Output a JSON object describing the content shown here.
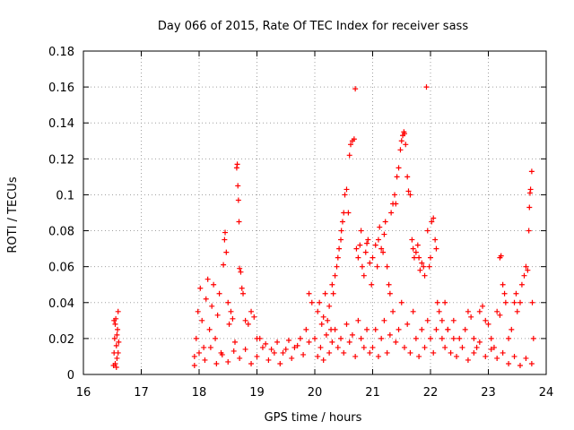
{
  "chart_data": {
    "type": "scatter",
    "title": "Day 066 of 2015, Rate Of TEC Index for receiver sass",
    "xlabel": "GPS time / hours",
    "ylabel": "ROTI / TECUs",
    "xlim": [
      16,
      24
    ],
    "ylim": [
      0,
      0.18
    ],
    "xticks": [
      "16",
      "17",
      "18",
      "19",
      "20",
      "21",
      "22",
      "23",
      "24"
    ],
    "yticks": [
      "0",
      "0.02",
      "0.04",
      "0.06",
      "0.08",
      "0.1",
      "0.12",
      "0.14",
      "0.16",
      "0.18"
    ],
    "grid": true,
    "marker": "+",
    "color": "#ff0000",
    "series": [
      {
        "name": "ROTI",
        "points": [
          [
            16.52,
            0.005
          ],
          [
            16.53,
            0.012
          ],
          [
            16.54,
            0.02
          ],
          [
            16.55,
            0.028
          ],
          [
            16.56,
            0.031
          ],
          [
            16.57,
            0.016
          ],
          [
            16.58,
            0.009
          ],
          [
            16.59,
            0.025
          ],
          [
            16.6,
            0.035
          ],
          [
            16.61,
            0.018
          ],
          [
            16.55,
            0.006
          ],
          [
            16.58,
            0.022
          ],
          [
            16.53,
            0.03
          ],
          [
            16.6,
            0.012
          ],
          [
            16.57,
            0.004
          ],
          [
            17.92,
            0.01
          ],
          [
            17.95,
            0.02
          ],
          [
            17.98,
            0.035
          ],
          [
            18.02,
            0.048
          ],
          [
            18.05,
            0.03
          ],
          [
            18.08,
            0.015
          ],
          [
            18.12,
            0.042
          ],
          [
            18.15,
            0.053
          ],
          [
            18.18,
            0.025
          ],
          [
            18.22,
            0.038
          ],
          [
            18.25,
            0.05
          ],
          [
            18.28,
            0.02
          ],
          [
            18.32,
            0.033
          ],
          [
            18.35,
            0.045
          ],
          [
            18.38,
            0.012
          ],
          [
            18.42,
            0.061
          ],
          [
            18.44,
            0.075
          ],
          [
            18.45,
            0.079
          ],
          [
            18.47,
            0.068
          ],
          [
            18.5,
            0.04
          ],
          [
            18.52,
            0.028
          ],
          [
            18.55,
            0.035
          ],
          [
            18.58,
            0.031
          ],
          [
            18.62,
            0.018
          ],
          [
            18.65,
            0.115
          ],
          [
            18.66,
            0.117
          ],
          [
            18.67,
            0.105
          ],
          [
            18.68,
            0.097
          ],
          [
            18.69,
            0.085
          ],
          [
            18.7,
            0.059
          ],
          [
            18.72,
            0.057
          ],
          [
            18.74,
            0.048
          ],
          [
            18.76,
            0.045
          ],
          [
            18.8,
            0.03
          ],
          [
            18.85,
            0.028
          ],
          [
            18.9,
            0.035
          ],
          [
            18.95,
            0.032
          ],
          [
            19.0,
            0.02
          ],
          [
            17.92,
            0.005
          ],
          [
            18.0,
            0.012
          ],
          [
            18.1,
            0.008
          ],
          [
            18.2,
            0.015
          ],
          [
            18.3,
            0.006
          ],
          [
            18.4,
            0.011
          ],
          [
            18.5,
            0.007
          ],
          [
            18.6,
            0.013
          ],
          [
            18.7,
            0.009
          ],
          [
            18.8,
            0.014
          ],
          [
            18.9,
            0.006
          ],
          [
            19.0,
            0.01
          ],
          [
            19.1,
            0.015
          ],
          [
            19.2,
            0.008
          ],
          [
            19.3,
            0.012
          ],
          [
            19.4,
            0.006
          ],
          [
            19.5,
            0.014
          ],
          [
            19.6,
            0.009
          ],
          [
            19.7,
            0.016
          ],
          [
            19.8,
            0.011
          ],
          [
            19.9,
            0.018
          ],
          [
            19.05,
            0.02
          ],
          [
            19.15,
            0.017
          ],
          [
            19.25,
            0.014
          ],
          [
            19.35,
            0.018
          ],
          [
            19.45,
            0.012
          ],
          [
            19.55,
            0.019
          ],
          [
            19.65,
            0.015
          ],
          [
            19.75,
            0.02
          ],
          [
            19.85,
            0.025
          ],
          [
            19.9,
            0.045
          ],
          [
            19.95,
            0.04
          ],
          [
            20.0,
            0.02
          ],
          [
            20.05,
            0.035
          ],
          [
            20.08,
            0.04
          ],
          [
            20.12,
            0.028
          ],
          [
            20.15,
            0.032
          ],
          [
            20.18,
            0.045
          ],
          [
            20.22,
            0.03
          ],
          [
            20.25,
            0.038
          ],
          [
            20.28,
            0.025
          ],
          [
            20.3,
            0.05
          ],
          [
            20.32,
            0.045
          ],
          [
            20.35,
            0.055
          ],
          [
            20.38,
            0.06
          ],
          [
            20.4,
            0.065
          ],
          [
            20.42,
            0.07
          ],
          [
            20.45,
            0.075
          ],
          [
            20.46,
            0.08
          ],
          [
            20.48,
            0.085
          ],
          [
            20.5,
            0.09
          ],
          [
            20.52,
            0.1
          ],
          [
            20.55,
            0.103
          ],
          [
            20.58,
            0.09
          ],
          [
            20.6,
            0.122
          ],
          [
            20.62,
            0.128
          ],
          [
            20.65,
            0.13
          ],
          [
            20.68,
            0.131
          ],
          [
            20.7,
            0.159
          ],
          [
            20.72,
            0.07
          ],
          [
            20.75,
            0.065
          ],
          [
            20.78,
            0.072
          ],
          [
            20.8,
            0.08
          ],
          [
            20.82,
            0.06
          ],
          [
            20.85,
            0.055
          ],
          [
            20.88,
            0.068
          ],
          [
            20.9,
            0.073
          ],
          [
            20.92,
            0.075
          ],
          [
            20.95,
            0.062
          ],
          [
            20.98,
            0.05
          ],
          [
            20.05,
            0.01
          ],
          [
            20.1,
            0.015
          ],
          [
            20.15,
            0.008
          ],
          [
            20.2,
            0.022
          ],
          [
            20.25,
            0.012
          ],
          [
            20.3,
            0.018
          ],
          [
            20.35,
            0.025
          ],
          [
            20.4,
            0.015
          ],
          [
            20.45,
            0.02
          ],
          [
            20.5,
            0.012
          ],
          [
            20.55,
            0.028
          ],
          [
            20.6,
            0.018
          ],
          [
            20.65,
            0.022
          ],
          [
            20.7,
            0.01
          ],
          [
            20.75,
            0.03
          ],
          [
            20.8,
            0.02
          ],
          [
            20.85,
            0.015
          ],
          [
            20.9,
            0.025
          ],
          [
            20.95,
            0.012
          ],
          [
            21.0,
            0.065
          ],
          [
            21.05,
            0.072
          ],
          [
            21.08,
            0.06
          ],
          [
            21.1,
            0.075
          ],
          [
            21.12,
            0.082
          ],
          [
            21.15,
            0.07
          ],
          [
            21.18,
            0.068
          ],
          [
            21.2,
            0.078
          ],
          [
            21.22,
            0.085
          ],
          [
            21.25,
            0.06
          ],
          [
            21.28,
            0.05
          ],
          [
            21.3,
            0.045
          ],
          [
            21.32,
            0.09
          ],
          [
            21.35,
            0.095
          ],
          [
            21.38,
            0.1
          ],
          [
            21.4,
            0.095
          ],
          [
            21.42,
            0.11
          ],
          [
            21.45,
            0.115
          ],
          [
            21.48,
            0.125
          ],
          [
            21.5,
            0.13
          ],
          [
            21.52,
            0.133
          ],
          [
            21.54,
            0.135
          ],
          [
            21.55,
            0.134
          ],
          [
            21.57,
            0.128
          ],
          [
            21.6,
            0.11
          ],
          [
            21.62,
            0.102
          ],
          [
            21.65,
            0.1
          ],
          [
            21.68,
            0.075
          ],
          [
            21.7,
            0.07
          ],
          [
            21.72,
            0.065
          ],
          [
            21.75,
            0.068
          ],
          [
            21.78,
            0.072
          ],
          [
            21.8,
            0.065
          ],
          [
            21.82,
            0.058
          ],
          [
            21.85,
            0.062
          ],
          [
            21.88,
            0.06
          ],
          [
            21.9,
            0.055
          ],
          [
            21.93,
            0.16
          ],
          [
            21.95,
            0.08
          ],
          [
            21.98,
            0.06
          ],
          [
            22.0,
            0.065
          ],
          [
            22.02,
            0.085
          ],
          [
            22.05,
            0.087
          ],
          [
            22.08,
            0.075
          ],
          [
            22.1,
            0.07
          ],
          [
            22.12,
            0.04
          ],
          [
            21.0,
            0.015
          ],
          [
            21.05,
            0.025
          ],
          [
            21.1,
            0.01
          ],
          [
            21.15,
            0.02
          ],
          [
            21.2,
            0.03
          ],
          [
            21.25,
            0.012
          ],
          [
            21.3,
            0.022
          ],
          [
            21.35,
            0.035
          ],
          [
            21.4,
            0.018
          ],
          [
            21.45,
            0.025
          ],
          [
            21.5,
            0.04
          ],
          [
            21.55,
            0.015
          ],
          [
            21.6,
            0.028
          ],
          [
            21.65,
            0.012
          ],
          [
            21.7,
            0.035
          ],
          [
            21.75,
            0.02
          ],
          [
            21.8,
            0.01
          ],
          [
            21.85,
            0.025
          ],
          [
            21.9,
            0.015
          ],
          [
            21.95,
            0.03
          ],
          [
            22.0,
            0.02
          ],
          [
            22.05,
            0.012
          ],
          [
            22.1,
            0.025
          ],
          [
            22.15,
            0.035
          ],
          [
            22.2,
            0.02
          ],
          [
            22.25,
            0.015
          ],
          [
            22.3,
            0.025
          ],
          [
            22.35,
            0.012
          ],
          [
            22.4,
            0.02
          ],
          [
            22.2,
            0.03
          ],
          [
            22.25,
            0.04
          ],
          [
            22.3,
            0.025
          ],
          [
            22.4,
            0.03
          ],
          [
            22.5,
            0.02
          ],
          [
            22.6,
            0.025
          ],
          [
            22.65,
            0.035
          ],
          [
            22.7,
            0.032
          ],
          [
            22.75,
            0.02
          ],
          [
            22.8,
            0.015
          ],
          [
            22.85,
            0.035
          ],
          [
            22.9,
            0.038
          ],
          [
            22.95,
            0.03
          ],
          [
            23.0,
            0.028
          ],
          [
            23.05,
            0.02
          ],
          [
            23.1,
            0.015
          ],
          [
            23.15,
            0.035
          ],
          [
            23.2,
            0.033
          ],
          [
            22.45,
            0.01
          ],
          [
            22.55,
            0.015
          ],
          [
            22.65,
            0.008
          ],
          [
            22.75,
            0.012
          ],
          [
            22.85,
            0.018
          ],
          [
            22.95,
            0.01
          ],
          [
            23.05,
            0.014
          ],
          [
            23.15,
            0.009
          ],
          [
            23.25,
            0.012
          ],
          [
            23.35,
            0.006
          ],
          [
            23.45,
            0.01
          ],
          [
            23.55,
            0.005
          ],
          [
            23.65,
            0.009
          ],
          [
            23.75,
            0.006
          ],
          [
            23.2,
            0.065
          ],
          [
            23.22,
            0.066
          ],
          [
            23.25,
            0.05
          ],
          [
            23.28,
            0.045
          ],
          [
            23.3,
            0.04
          ],
          [
            23.35,
            0.02
          ],
          [
            23.4,
            0.025
          ],
          [
            23.45,
            0.04
          ],
          [
            23.48,
            0.045
          ],
          [
            23.5,
            0.035
          ],
          [
            23.55,
            0.04
          ],
          [
            23.58,
            0.05
          ],
          [
            23.62,
            0.055
          ],
          [
            23.65,
            0.06
          ],
          [
            23.68,
            0.058
          ],
          [
            23.7,
            0.08
          ],
          [
            23.71,
            0.093
          ],
          [
            23.72,
            0.101
          ],
          [
            23.73,
            0.103
          ],
          [
            23.75,
            0.113
          ],
          [
            23.76,
            0.04
          ],
          [
            23.78,
            0.02
          ]
        ]
      }
    ]
  }
}
